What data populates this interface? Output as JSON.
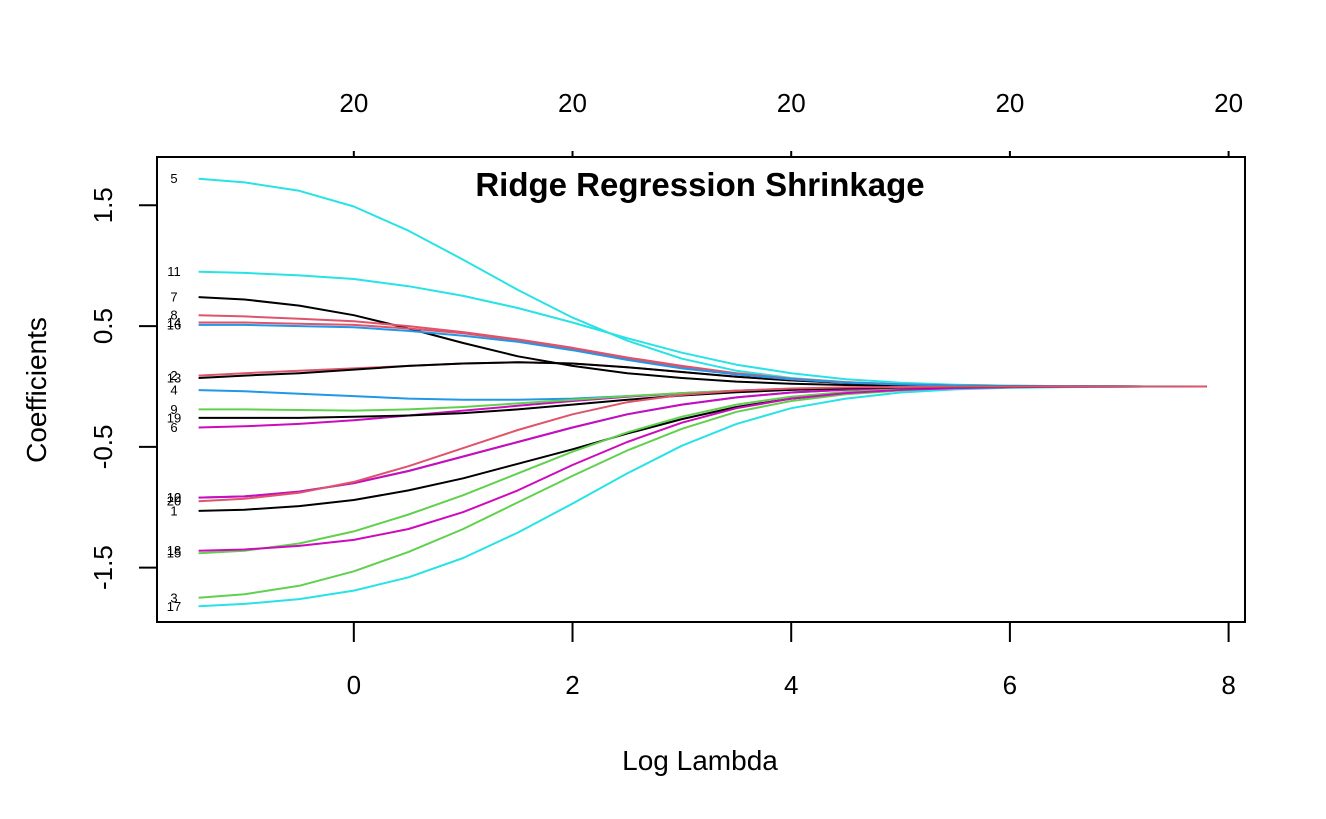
{
  "chart_data": {
    "type": "line",
    "title": "Ridge Regression Shrinkage",
    "xlabel": "Log Lambda",
    "ylabel": "Coefficients",
    "xlim": [
      -1.8,
      8.15
    ],
    "ylim": [
      -1.95,
      1.9
    ],
    "x_ticks": [
      0,
      2,
      4,
      6,
      8
    ],
    "x_tick_labels": [
      "0",
      "2",
      "4",
      "6",
      "8"
    ],
    "y_ticks": [
      -1.5,
      -0.5,
      0.5,
      1.5
    ],
    "y_tick_labels": [
      "-1.5",
      "-0.5",
      "0.5",
      "1.5"
    ],
    "top_ticks": [
      0,
      2,
      4,
      6,
      8
    ],
    "top_tick_labels": [
      "20",
      "20",
      "20",
      "20",
      "20"
    ],
    "grid": false,
    "legend": "none",
    "x": [
      -1.42,
      -1.0,
      -0.5,
      0.0,
      0.5,
      1.0,
      1.5,
      2.0,
      2.5,
      3.0,
      3.5,
      4.0,
      4.5,
      5.0,
      5.5,
      6.0,
      6.5,
      7.0,
      7.5,
      7.8
    ],
    "series": [
      {
        "label": "1",
        "color": "#000000",
        "values": [
          -1.03,
          -1.02,
          -0.99,
          -0.94,
          -0.86,
          -0.76,
          -0.64,
          -0.52,
          -0.39,
          -0.27,
          -0.17,
          -0.1,
          -0.055,
          -0.028,
          -0.013,
          -0.006,
          -0.003,
          -0.001,
          -0.0003,
          0.0
        ]
      },
      {
        "label": "2",
        "color": "#DF536B",
        "values": [
          0.09,
          0.11,
          0.13,
          0.15,
          0.17,
          0.19,
          0.2,
          0.19,
          0.16,
          0.12,
          0.08,
          0.05,
          0.03,
          0.015,
          0.007,
          0.003,
          0.0015,
          0.0006,
          0.0002,
          0.0
        ]
      },
      {
        "label": "3",
        "color": "#61D04F",
        "values": [
          -1.75,
          -1.72,
          -1.65,
          -1.53,
          -1.37,
          -1.18,
          -0.96,
          -0.74,
          -0.53,
          -0.35,
          -0.21,
          -0.12,
          -0.065,
          -0.033,
          -0.016,
          -0.007,
          -0.003,
          -0.0013,
          -0.0004,
          0.0
        ]
      },
      {
        "label": "4",
        "color": "#2297E6",
        "values": [
          -0.03,
          -0.04,
          -0.06,
          -0.08,
          -0.1,
          -0.11,
          -0.11,
          -0.1,
          -0.08,
          -0.06,
          -0.04,
          -0.025,
          -0.014,
          -0.007,
          -0.003,
          -0.0015,
          -0.0007,
          -0.0003,
          -0.0001,
          0.0
        ]
      },
      {
        "label": "5",
        "color": "#28E2E5",
        "values": [
          1.72,
          1.69,
          1.62,
          1.49,
          1.29,
          1.05,
          0.8,
          0.57,
          0.38,
          0.23,
          0.13,
          0.07,
          0.036,
          0.017,
          0.008,
          0.0035,
          0.0015,
          0.0006,
          0.0002,
          0.0
        ]
      },
      {
        "label": "6",
        "color": "#CD0BBC",
        "values": [
          -0.34,
          -0.33,
          -0.31,
          -0.28,
          -0.24,
          -0.2,
          -0.16,
          -0.12,
          -0.085,
          -0.055,
          -0.034,
          -0.02,
          -0.011,
          -0.006,
          -0.003,
          -0.0013,
          -0.0006,
          -0.0002,
          -0.0001,
          0.0
        ]
      },
      {
        "label": "7",
        "color": "#000000",
        "values": [
          0.74,
          0.72,
          0.67,
          0.59,
          0.48,
          0.36,
          0.25,
          0.17,
          0.11,
          0.07,
          0.04,
          0.022,
          0.012,
          0.006,
          0.003,
          0.0013,
          0.0006,
          0.0002,
          0.0001,
          0.0
        ]
      },
      {
        "label": "8",
        "color": "#DF536B",
        "values": [
          0.59,
          0.58,
          0.56,
          0.54,
          0.5,
          0.45,
          0.39,
          0.32,
          0.24,
          0.17,
          0.11,
          0.065,
          0.036,
          0.018,
          0.009,
          0.004,
          0.0017,
          0.0007,
          0.0002,
          0.0
        ]
      },
      {
        "label": "9",
        "color": "#61D04F",
        "values": [
          -0.19,
          -0.19,
          -0.195,
          -0.2,
          -0.19,
          -0.17,
          -0.14,
          -0.11,
          -0.08,
          -0.055,
          -0.035,
          -0.02,
          -0.011,
          -0.006,
          -0.003,
          -0.0013,
          -0.0006,
          -0.0002,
          -0.0001,
          0.0
        ]
      },
      {
        "label": "10",
        "color": "#2297E6",
        "values": [
          -0.92,
          -0.91,
          -0.87,
          -0.8,
          -0.7,
          -0.58,
          -0.46,
          -0.34,
          -0.23,
          -0.15,
          -0.09,
          -0.05,
          -0.027,
          -0.014,
          -0.007,
          -0.003,
          -0.0013,
          -0.0005,
          -0.0002,
          0.0
        ]
      },
      {
        "label": "11",
        "color": "#28E2E5",
        "values": [
          0.95,
          0.94,
          0.92,
          0.89,
          0.83,
          0.75,
          0.65,
          0.53,
          0.4,
          0.28,
          0.18,
          0.11,
          0.06,
          0.031,
          0.015,
          0.007,
          0.003,
          0.0012,
          0.0004,
          0.0
        ]
      },
      {
        "label": "12",
        "color": "#CD0BBC",
        "values": [
          -0.92,
          -0.91,
          -0.87,
          -0.8,
          -0.7,
          -0.58,
          -0.46,
          -0.34,
          -0.23,
          -0.15,
          -0.09,
          -0.05,
          -0.027,
          -0.014,
          -0.007,
          -0.003,
          -0.0013,
          -0.0005,
          -0.0002,
          0.0
        ]
      },
      {
        "label": "13",
        "color": "#000000",
        "values": [
          0.07,
          0.09,
          0.11,
          0.14,
          0.17,
          0.19,
          0.2,
          0.19,
          0.16,
          0.12,
          0.08,
          0.05,
          0.03,
          0.015,
          0.007,
          0.003,
          0.0015,
          0.0006,
          0.0002,
          0.0
        ]
      },
      {
        "label": "14",
        "color": "#DF536B",
        "values": [
          0.53,
          0.53,
          0.52,
          0.51,
          0.48,
          0.44,
          0.38,
          0.31,
          0.23,
          0.16,
          0.1,
          0.06,
          0.033,
          0.017,
          0.008,
          0.0035,
          0.0015,
          0.0006,
          0.0002,
          0.0
        ]
      },
      {
        "label": "15",
        "color": "#61D04F",
        "values": [
          -1.38,
          -1.36,
          -1.3,
          -1.2,
          -1.06,
          -0.9,
          -0.72,
          -0.54,
          -0.38,
          -0.25,
          -0.15,
          -0.085,
          -0.046,
          -0.024,
          -0.011,
          -0.005,
          -0.0022,
          -0.0009,
          -0.0003,
          0.0
        ]
      },
      {
        "label": "16",
        "color": "#2297E6",
        "values": [
          0.51,
          0.51,
          0.5,
          0.49,
          0.46,
          0.42,
          0.37,
          0.3,
          0.22,
          0.15,
          0.1,
          0.06,
          0.032,
          0.016,
          0.008,
          0.0035,
          0.0015,
          0.0006,
          0.0002,
          0.0
        ]
      },
      {
        "label": "17",
        "color": "#28E2E5",
        "values": [
          -1.82,
          -1.8,
          -1.76,
          -1.69,
          -1.58,
          -1.42,
          -1.21,
          -0.97,
          -0.72,
          -0.49,
          -0.31,
          -0.18,
          -0.1,
          -0.05,
          -0.024,
          -0.011,
          -0.005,
          -0.002,
          -0.0006,
          0.0
        ]
      },
      {
        "label": "18",
        "color": "#CD0BBC",
        "values": [
          -1.36,
          -1.35,
          -1.32,
          -1.27,
          -1.18,
          -1.04,
          -0.86,
          -0.65,
          -0.46,
          -0.3,
          -0.18,
          -0.1,
          -0.055,
          -0.028,
          -0.013,
          -0.006,
          -0.0026,
          -0.001,
          -0.0003,
          0.0
        ]
      },
      {
        "label": "19",
        "color": "#000000",
        "values": [
          -0.26,
          -0.26,
          -0.26,
          -0.25,
          -0.24,
          -0.22,
          -0.19,
          -0.15,
          -0.11,
          -0.075,
          -0.047,
          -0.028,
          -0.015,
          -0.008,
          -0.004,
          -0.0018,
          -0.0008,
          -0.0003,
          -0.0001,
          0.0
        ]
      },
      {
        "label": "20",
        "color": "#DF536B",
        "values": [
          -0.95,
          -0.93,
          -0.88,
          -0.79,
          -0.66,
          -0.51,
          -0.36,
          -0.23,
          -0.13,
          -0.07,
          -0.035,
          -0.017,
          -0.008,
          -0.004,
          -0.0018,
          -0.0008,
          -0.0003,
          -0.0001,
          0.0,
          0.0
        ]
      }
    ]
  }
}
